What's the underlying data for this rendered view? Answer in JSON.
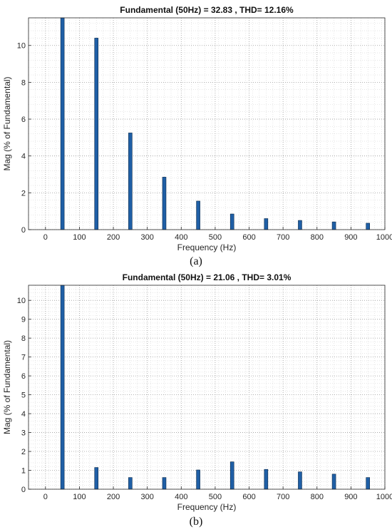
{
  "chart_data": [
    {
      "type": "bar",
      "panel_label": "(a)",
      "title": "Fundamental (50Hz) = 32.83 , THD= 12.16%",
      "xlabel": "Frequency (Hz)",
      "ylabel": "Mag (% of Fundamental)",
      "xlim": [
        -50,
        1000
      ],
      "ylim": [
        0,
        11.5
      ],
      "xticks": [
        0,
        100,
        200,
        300,
        400,
        500,
        600,
        700,
        800,
        900,
        1000
      ],
      "yticks": [
        0,
        2,
        4,
        6,
        8,
        10
      ],
      "grid": true,
      "bar_color": "#1f5fa6",
      "x": [
        50,
        150,
        250,
        350,
        450,
        550,
        650,
        750,
        850,
        950
      ],
      "values": [
        11.5,
        10.4,
        5.25,
        2.85,
        1.55,
        0.85,
        0.6,
        0.5,
        0.42,
        0.35
      ]
    },
    {
      "type": "bar",
      "panel_label": "(b)",
      "title": "Fundamental (50Hz) = 21.06 , THD= 3.01%",
      "xlabel": "Frequency (Hz)",
      "ylabel": "Mag (% of Fundamental)",
      "xlim": [
        -50,
        1000
      ],
      "ylim": [
        0,
        10.8
      ],
      "xticks": [
        0,
        100,
        200,
        300,
        400,
        500,
        600,
        700,
        800,
        900,
        1000
      ],
      "yticks": [
        0,
        1,
        2,
        3,
        4,
        5,
        6,
        7,
        8,
        9,
        10
      ],
      "grid": true,
      "bar_color": "#1f5fa6",
      "x": [
        50,
        150,
        250,
        350,
        450,
        550,
        650,
        750,
        850,
        950
      ],
      "values": [
        10.8,
        1.15,
        0.62,
        0.62,
        1.02,
        1.45,
        1.05,
        0.92,
        0.8,
        0.62
      ]
    }
  ]
}
